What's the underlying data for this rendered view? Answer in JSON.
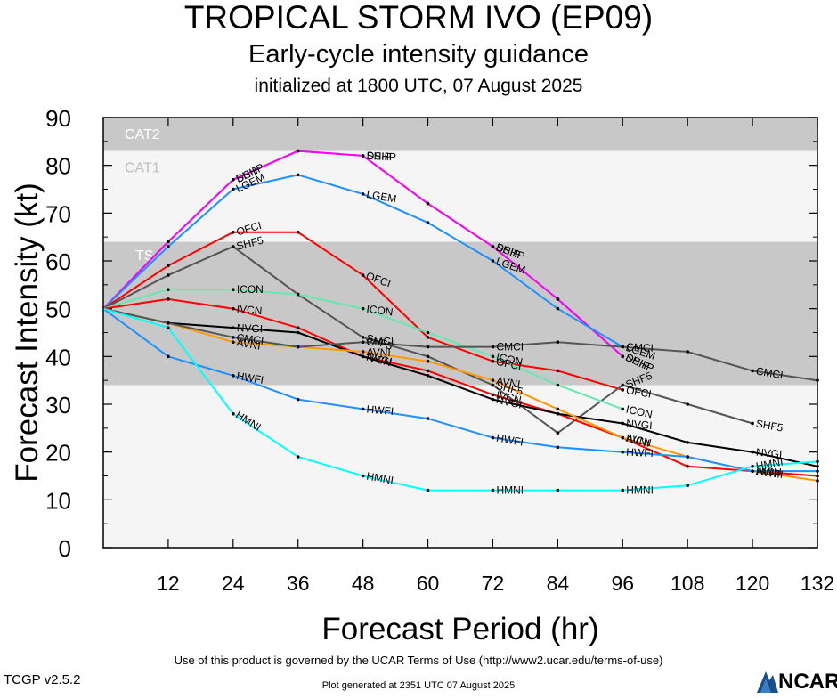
{
  "header": {
    "title": "TROPICAL STORM IVO (EP09)",
    "subtitle": "Early-cycle intensity guidance",
    "init": "initialized at 1800 UTC, 07 August 2025"
  },
  "footer": {
    "terms": "Use of this product is governed by the UCAR Terms of Use (http://www2.ucar.edu/terms-of-use)",
    "version": "TCGP v2.5.2",
    "generated": "Plot generated at 2351 UTC   07 August 2025",
    "logo": "NCAR"
  },
  "chart_data": {
    "type": "line",
    "xlabel": "Forecast Period (hr)",
    "ylabel": "Forecast Intensity (kt)",
    "xlim": [
      0,
      132
    ],
    "ylim": [
      0,
      90
    ],
    "xticks": [
      12,
      24,
      36,
      48,
      60,
      72,
      84,
      96,
      108,
      120,
      132
    ],
    "yticks": [
      0,
      10,
      20,
      30,
      40,
      50,
      60,
      70,
      80,
      90
    ],
    "bands": [
      {
        "label": "TS",
        "from": 34,
        "to": 64,
        "color": "#c8c8c8"
      },
      {
        "label": "CAT1",
        "from": 64,
        "to": 83,
        "color": "#f5f5f5"
      },
      {
        "label": "CAT2",
        "from": 83,
        "to": 96,
        "color": "#c8c8c8"
      }
    ],
    "series": [
      {
        "name": "DSHP",
        "color": "#2ca02c",
        "x": [
          0,
          12,
          24,
          36,
          48,
          60,
          72,
          84,
          96
        ],
        "values": [
          50,
          64,
          77,
          83,
          82,
          72,
          63,
          52,
          40
        ]
      },
      {
        "name": "SHIP",
        "color": "#ff00ff",
        "x": [
          0,
          12,
          24,
          36,
          48,
          60,
          72,
          84,
          96
        ],
        "values": [
          50,
          64,
          77,
          83,
          82,
          72,
          63,
          52,
          40
        ]
      },
      {
        "name": "LGEM",
        "color": "#1e90ff",
        "x": [
          0,
          12,
          24,
          36,
          48,
          60,
          72,
          84,
          96
        ],
        "values": [
          50,
          63,
          75,
          78,
          74,
          68,
          60,
          50,
          42
        ]
      },
      {
        "name": "OFCI",
        "color": "#ff0000",
        "x": [
          0,
          12,
          24,
          36,
          48,
          60,
          72,
          84,
          96
        ],
        "values": [
          50,
          59,
          66,
          66,
          57,
          44,
          39,
          37,
          33
        ]
      },
      {
        "name": "SHF5",
        "color": "#555555",
        "x": [
          0,
          12,
          24,
          36,
          48,
          60,
          72,
          84,
          96,
          108,
          120
        ],
        "values": [
          50,
          57,
          63,
          53,
          44,
          40,
          34,
          24,
          34,
          30,
          26
        ]
      },
      {
        "name": "ICON",
        "color": "#66e8b0",
        "x": [
          0,
          12,
          24,
          36,
          48,
          60,
          72,
          84,
          96
        ],
        "values": [
          50,
          54,
          54,
          53,
          50,
          45,
          40,
          34,
          29
        ]
      },
      {
        "name": "IVCN",
        "color": "#ff0000",
        "x": [
          0,
          12,
          24,
          36,
          48,
          60,
          72,
          84,
          96,
          108,
          120,
          132
        ],
        "values": [
          50,
          52,
          50,
          46,
          40,
          37,
          32,
          28,
          23,
          17,
          16,
          15
        ]
      },
      {
        "name": "NVGI",
        "color": "#000000",
        "x": [
          0,
          12,
          24,
          36,
          48,
          60,
          72,
          84,
          96,
          108,
          120,
          132
        ],
        "values": [
          50,
          47,
          46,
          45,
          40,
          36,
          31,
          28,
          26,
          22,
          20,
          17
        ]
      },
      {
        "name": "AVNI",
        "color": "#ff9900",
        "x": [
          0,
          12,
          24,
          36,
          48,
          60,
          72,
          84,
          96,
          108,
          120,
          132
        ],
        "values": [
          50,
          47,
          43,
          42,
          41,
          39,
          35,
          29,
          23,
          19,
          16,
          14
        ]
      },
      {
        "name": "CMCI",
        "color": "#555555",
        "x": [
          0,
          12,
          24,
          36,
          48,
          60,
          72,
          84,
          96,
          108,
          120,
          132
        ],
        "values": [
          50,
          47,
          44,
          42,
          43,
          42,
          42,
          43,
          42,
          41,
          37,
          35
        ]
      },
      {
        "name": "HWFI",
        "color": "#1e90ff",
        "x": [
          0,
          12,
          24,
          36,
          48,
          60,
          72,
          84,
          96,
          108,
          120,
          132
        ],
        "values": [
          50,
          40,
          36,
          31,
          29,
          27,
          23,
          21,
          20,
          19,
          16,
          16
        ]
      },
      {
        "name": "HMNI",
        "color": "#00ffff",
        "x": [
          0,
          12,
          24,
          36,
          48,
          60,
          72,
          84,
          96,
          108,
          120,
          132
        ],
        "values": [
          50,
          46,
          28,
          19,
          15,
          12,
          12,
          12,
          12,
          13,
          17,
          18
        ]
      }
    ]
  }
}
